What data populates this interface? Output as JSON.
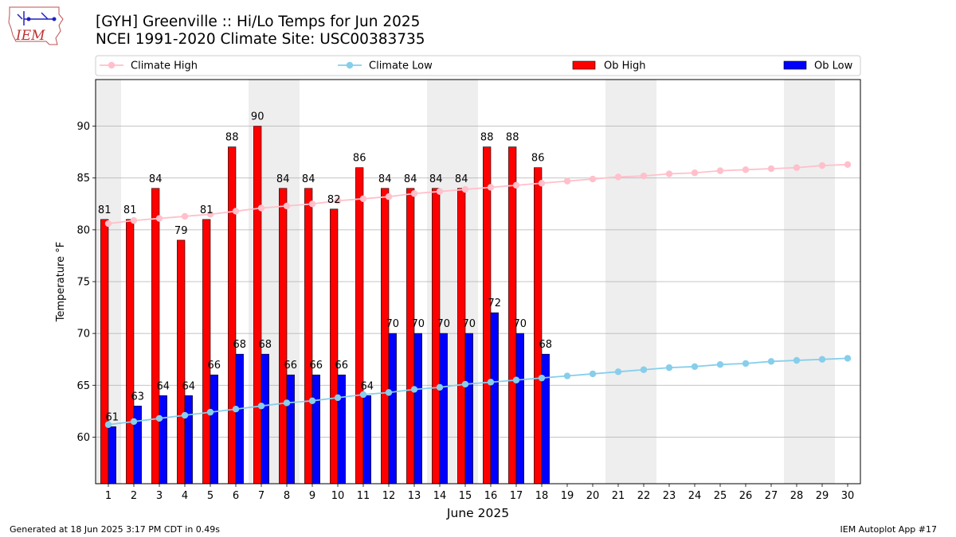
{
  "header": {
    "title_line1": "[GYH] Greenville :: Hi/Lo Temps for Jun 2025",
    "title_line2": "NCEI 1991-2020 Climate Site: USC00383735"
  },
  "logo": {
    "text": "IEM"
  },
  "footer": {
    "generated": "Generated at 18 Jun 2025 3:17 PM CDT in 0.49s",
    "app": "IEM Autoplot App #17"
  },
  "colors": {
    "climate_high": "#ffc0cb",
    "climate_low": "#87ceeb",
    "ob_high": "#ff0000",
    "ob_low": "#0000ff",
    "weekend_shade": "#eeeeee",
    "grid": "#b0b0b0"
  },
  "chart_data": {
    "type": "bar",
    "xlabel": "June 2025",
    "ylabel": "Temperature °F",
    "ylim": [
      55.5,
      94.5
    ],
    "xlim": [
      0.5,
      30.5
    ],
    "yticks": [
      60,
      65,
      70,
      75,
      80,
      85,
      90
    ],
    "days": [
      1,
      2,
      3,
      4,
      5,
      6,
      7,
      8,
      9,
      10,
      11,
      12,
      13,
      14,
      15,
      16,
      17,
      18,
      19,
      20,
      21,
      22,
      23,
      24,
      25,
      26,
      27,
      28,
      29,
      30
    ],
    "shaded_days": [
      1,
      7,
      8,
      14,
      15,
      21,
      22,
      28,
      29
    ],
    "grid": true,
    "legend_position": "top",
    "legend": [
      "Climate High",
      "Climate Low",
      "Ob High",
      "Ob Low"
    ],
    "series": [
      {
        "name": "Climate High",
        "kind": "line",
        "values": [
          80.6,
          80.9,
          81.1,
          81.3,
          81.5,
          81.8,
          82.1,
          82.3,
          82.5,
          82.8,
          83.0,
          83.2,
          83.5,
          83.7,
          83.9,
          84.1,
          84.3,
          84.5,
          84.7,
          84.9,
          85.1,
          85.2,
          85.4,
          85.5,
          85.7,
          85.8,
          85.9,
          86.0,
          86.2,
          86.3
        ]
      },
      {
        "name": "Climate Low",
        "kind": "line",
        "values": [
          61.2,
          61.5,
          61.8,
          62.1,
          62.4,
          62.7,
          63.0,
          63.3,
          63.5,
          63.8,
          64.1,
          64.3,
          64.6,
          64.8,
          65.1,
          65.3,
          65.5,
          65.7,
          65.9,
          66.1,
          66.3,
          66.5,
          66.7,
          66.8,
          67.0,
          67.1,
          67.3,
          67.4,
          67.5,
          67.6
        ]
      },
      {
        "name": "Ob High",
        "kind": "bar",
        "values": [
          81,
          81,
          84,
          79,
          81,
          88,
          90,
          84,
          84,
          82,
          86,
          84,
          84,
          84,
          84,
          88,
          88,
          86
        ]
      },
      {
        "name": "Ob Low",
        "kind": "bar",
        "values": [
          61,
          63,
          64,
          64,
          66,
          68,
          68,
          66,
          66,
          66,
          64,
          70,
          70,
          70,
          70,
          72,
          70,
          68
        ]
      }
    ]
  }
}
